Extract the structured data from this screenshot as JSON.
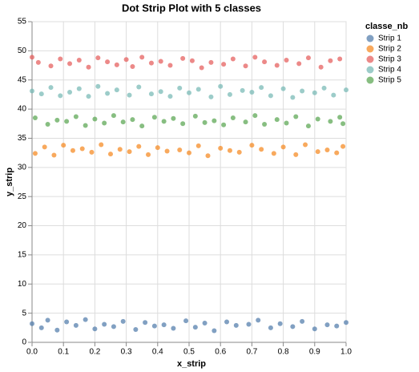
{
  "chart_data": {
    "type": "scatter",
    "title": "Dot Strip Plot with 5 classes",
    "x_label": "x_strip",
    "y_label": "y_strip",
    "legend_title": "classe_nb",
    "legend_position": "right",
    "grid": true,
    "xlim": [
      0,
      1
    ],
    "xticks": [
      {
        "value": 0,
        "label": "0.0"
      },
      0.1,
      0.2,
      0.3,
      0.4,
      0.5,
      0.6,
      0.7,
      0.8,
      0.9,
      {
        "value": 1,
        "label": "1.0"
      }
    ],
    "ylim": [
      0,
      55
    ],
    "yticks": [
      0,
      5,
      10,
      15,
      20,
      25,
      30,
      35,
      40,
      45,
      50,
      55
    ],
    "series": [
      {
        "name": "Strip 1",
        "color": "#4c78a8",
        "x": [
          0.0,
          0.03,
          0.05,
          0.08,
          0.11,
          0.14,
          0.17,
          0.2,
          0.23,
          0.26,
          0.29,
          0.33,
          0.36,
          0.39,
          0.42,
          0.45,
          0.49,
          0.52,
          0.55,
          0.58,
          0.62,
          0.65,
          0.69,
          0.72,
          0.76,
          0.79,
          0.83,
          0.86,
          0.9,
          0.94,
          0.97,
          1.0
        ],
        "values": [
          3.2,
          2.5,
          3.8,
          2.1,
          3.5,
          2.9,
          3.9,
          2.3,
          3.1,
          2.7,
          3.6,
          2.2,
          3.4,
          2.8,
          3.0,
          2.4,
          3.7,
          2.6,
          3.3,
          2.0,
          3.5,
          2.9,
          3.1,
          3.8,
          2.5,
          3.2,
          2.7,
          3.6,
          2.3,
          3.0,
          2.8,
          3.4
        ]
      },
      {
        "name": "Strip 2",
        "color": "#f58518",
        "x": [
          0.01,
          0.04,
          0.07,
          0.1,
          0.13,
          0.16,
          0.19,
          0.22,
          0.25,
          0.28,
          0.31,
          0.34,
          0.37,
          0.4,
          0.43,
          0.47,
          0.5,
          0.53,
          0.56,
          0.6,
          0.63,
          0.66,
          0.7,
          0.73,
          0.77,
          0.8,
          0.84,
          0.87,
          0.91,
          0.94,
          0.97,
          0.99
        ],
        "values": [
          32.4,
          33.5,
          32.1,
          33.8,
          32.9,
          33.2,
          32.6,
          33.9,
          32.3,
          33.1,
          32.7,
          33.6,
          32.2,
          33.4,
          32.8,
          33.0,
          32.5,
          33.7,
          32.0,
          33.3,
          32.9,
          32.6,
          33.8,
          33.1,
          32.4,
          33.5,
          32.2,
          33.9,
          32.7,
          33.0,
          32.5,
          33.6
        ]
      },
      {
        "name": "Strip 3",
        "color": "#e45756",
        "x": [
          0.0,
          0.02,
          0.06,
          0.09,
          0.12,
          0.15,
          0.18,
          0.21,
          0.24,
          0.27,
          0.3,
          0.32,
          0.35,
          0.38,
          0.41,
          0.44,
          0.48,
          0.51,
          0.54,
          0.57,
          0.61,
          0.64,
          0.68,
          0.71,
          0.74,
          0.78,
          0.81,
          0.85,
          0.88,
          0.92,
          0.95,
          0.98
        ],
        "values": [
          48.9,
          48.0,
          47.4,
          48.6,
          47.8,
          48.4,
          47.2,
          48.8,
          48.1,
          47.6,
          48.5,
          47.3,
          48.9,
          47.9,
          48.2,
          47.5,
          48.7,
          48.3,
          47.1,
          48.0,
          47.7,
          48.6,
          47.4,
          48.9,
          48.1,
          47.5,
          48.4,
          47.8,
          48.8,
          47.2,
          48.3,
          48.6
        ]
      },
      {
        "name": "Strip 4",
        "color": "#72b7b2",
        "x": [
          0.0,
          0.03,
          0.06,
          0.09,
          0.12,
          0.15,
          0.18,
          0.21,
          0.24,
          0.27,
          0.31,
          0.34,
          0.38,
          0.41,
          0.44,
          0.47,
          0.5,
          0.53,
          0.57,
          0.6,
          0.63,
          0.67,
          0.7,
          0.73,
          0.76,
          0.8,
          0.83,
          0.86,
          0.9,
          0.93,
          0.96,
          1.0
        ],
        "values": [
          43.1,
          42.6,
          43.7,
          42.3,
          42.9,
          43.5,
          42.2,
          43.9,
          42.7,
          43.3,
          42.4,
          43.8,
          42.6,
          43.0,
          42.2,
          43.6,
          42.8,
          43.4,
          42.1,
          43.9,
          42.5,
          43.2,
          42.9,
          43.7,
          42.3,
          43.5,
          42.0,
          43.1,
          42.8,
          43.6,
          42.4,
          43.3
        ]
      },
      {
        "name": "Strip 5",
        "color": "#54a24b",
        "x": [
          0.01,
          0.05,
          0.08,
          0.11,
          0.14,
          0.17,
          0.2,
          0.23,
          0.26,
          0.29,
          0.32,
          0.35,
          0.39,
          0.42,
          0.45,
          0.48,
          0.52,
          0.55,
          0.58,
          0.61,
          0.64,
          0.68,
          0.71,
          0.74,
          0.78,
          0.81,
          0.84,
          0.88,
          0.91,
          0.95,
          0.98,
          0.99
        ],
        "values": [
          38.5,
          37.4,
          38.1,
          37.9,
          38.7,
          37.2,
          38.3,
          37.6,
          38.9,
          37.8,
          38.2,
          37.1,
          38.6,
          37.9,
          38.4,
          37.5,
          38.8,
          37.7,
          38.0,
          37.3,
          38.5,
          37.8,
          38.9,
          37.4,
          38.2,
          37.6,
          38.7,
          37.1,
          38.3,
          37.9,
          38.6,
          37.5
        ]
      }
    ]
  }
}
